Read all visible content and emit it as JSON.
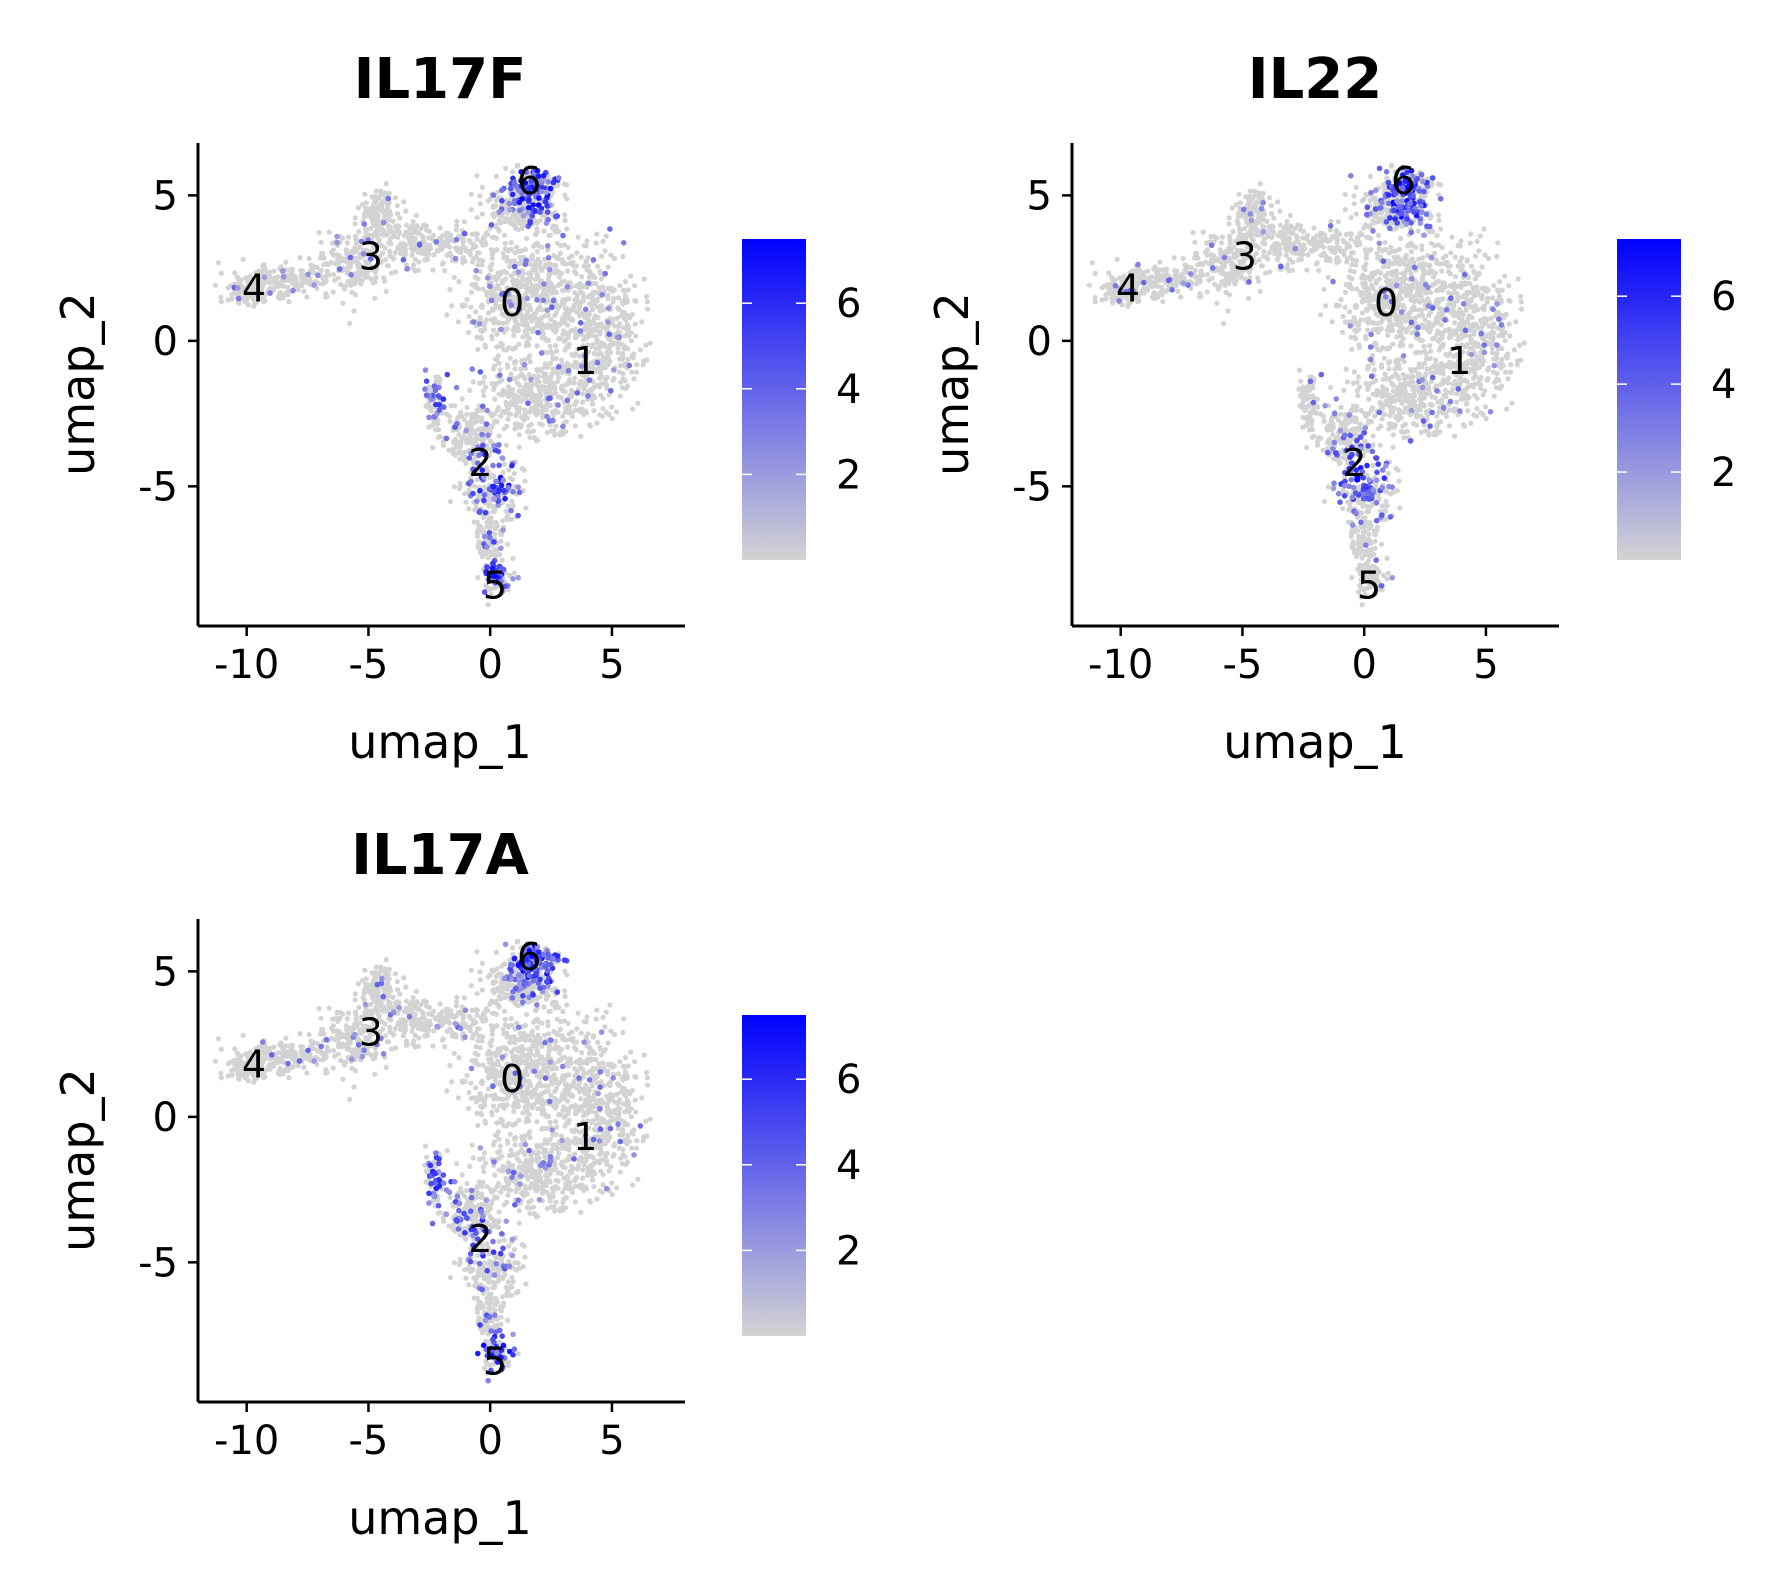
{
  "colors": {
    "low": "#d3d3d3",
    "high": "#0000ff",
    "background_points": "#d3d3d3"
  },
  "chart_data": [
    {
      "type": "scatter",
      "title": "IL17F",
      "xlabel": "umap_1",
      "ylabel": "umap_2",
      "xlim": [
        -12,
        8
      ],
      "ylim": [
        -9.8,
        6.8
      ],
      "xticks": [
        -10,
        -5,
        0,
        5
      ],
      "xtick_labels": [
        "-10",
        "-5",
        "0",
        "5"
      ],
      "yticks": [
        -5,
        0,
        5
      ],
      "ytick_labels": [
        "-5",
        "0",
        "5"
      ],
      "colorbar": {
        "min": 0,
        "max": 7.5,
        "ticks": [
          2,
          4,
          6
        ],
        "tick_labels": [
          "2",
          "4",
          "6"
        ]
      },
      "clusters": [
        {
          "label": "0",
          "x": 0.9,
          "y": 1.3
        },
        {
          "label": "1",
          "x": 3.9,
          "y": -0.7
        },
        {
          "label": "2",
          "x": -0.4,
          "y": -4.2
        },
        {
          "label": "3",
          "x": -4.9,
          "y": 2.9
        },
        {
          "label": "4",
          "x": -9.7,
          "y": 1.8
        },
        {
          "label": "5",
          "x": 0.2,
          "y": -8.4
        },
        {
          "label": "6",
          "x": 1.6,
          "y": 5.5
        }
      ],
      "hotspots": [
        {
          "x": 1.8,
          "y": 5.3,
          "w": 0.9
        },
        {
          "x": 0.3,
          "y": -4.8,
          "w": 0.7
        },
        {
          "x": 0.2,
          "y": -8.1,
          "w": 0.6
        },
        {
          "x": -2.4,
          "y": -2.0,
          "w": 0.4
        }
      ]
    },
    {
      "type": "scatter",
      "title": "IL22",
      "xlabel": "umap_1",
      "ylabel": "umap_2",
      "xlim": [
        -12,
        8
      ],
      "ylim": [
        -9.8,
        6.8
      ],
      "xticks": [
        -10,
        -5,
        0,
        5
      ],
      "xtick_labels": [
        "-10",
        "-5",
        "0",
        "5"
      ],
      "yticks": [
        -5,
        0,
        5
      ],
      "ytick_labels": [
        "-5",
        "0",
        "5"
      ],
      "colorbar": {
        "min": 0,
        "max": 7.3,
        "ticks": [
          2,
          4,
          6
        ],
        "tick_labels": [
          "2",
          "4",
          "6"
        ]
      },
      "clusters": [
        {
          "label": "0",
          "x": 0.9,
          "y": 1.3
        },
        {
          "label": "1",
          "x": 3.9,
          "y": -0.7
        },
        {
          "label": "2",
          "x": -0.4,
          "y": -4.2
        },
        {
          "label": "3",
          "x": -4.9,
          "y": 2.9
        },
        {
          "label": "4",
          "x": -9.7,
          "y": 1.8
        },
        {
          "label": "5",
          "x": 0.2,
          "y": -8.4
        },
        {
          "label": "6",
          "x": 1.6,
          "y": 5.5
        }
      ],
      "hotspots": [
        {
          "x": 1.8,
          "y": 5.0,
          "w": 0.9
        },
        {
          "x": 0.0,
          "y": -4.6,
          "w": 0.7
        }
      ]
    },
    {
      "type": "scatter",
      "title": "IL17A",
      "xlabel": "umap_1",
      "ylabel": "umap_2",
      "xlim": [
        -12,
        8
      ],
      "ylim": [
        -9.8,
        6.8
      ],
      "xticks": [
        -10,
        -5,
        0,
        5
      ],
      "xtick_labels": [
        "-10",
        "-5",
        "0",
        "5"
      ],
      "yticks": [
        -5,
        0,
        5
      ],
      "ytick_labels": [
        "-5",
        "0",
        "5"
      ],
      "colorbar": {
        "min": 0,
        "max": 7.5,
        "ticks": [
          2,
          4,
          6
        ],
        "tick_labels": [
          "2",
          "4",
          "6"
        ]
      },
      "clusters": [
        {
          "label": "0",
          "x": 0.9,
          "y": 1.3
        },
        {
          "label": "1",
          "x": 3.9,
          "y": -0.7
        },
        {
          "label": "2",
          "x": -0.4,
          "y": -4.2
        },
        {
          "label": "3",
          "x": -4.9,
          "y": 2.9
        },
        {
          "label": "4",
          "x": -9.7,
          "y": 1.8
        },
        {
          "label": "5",
          "x": 0.2,
          "y": -8.4
        },
        {
          "label": "6",
          "x": 1.6,
          "y": 5.5
        }
      ],
      "hotspots": [
        {
          "x": 1.8,
          "y": 5.3,
          "w": 0.9
        },
        {
          "x": 0.2,
          "y": -8.1,
          "w": 0.7
        },
        {
          "x": -2.4,
          "y": -2.0,
          "w": 0.6
        },
        {
          "x": -0.5,
          "y": -4.2,
          "w": 0.5
        }
      ]
    }
  ]
}
